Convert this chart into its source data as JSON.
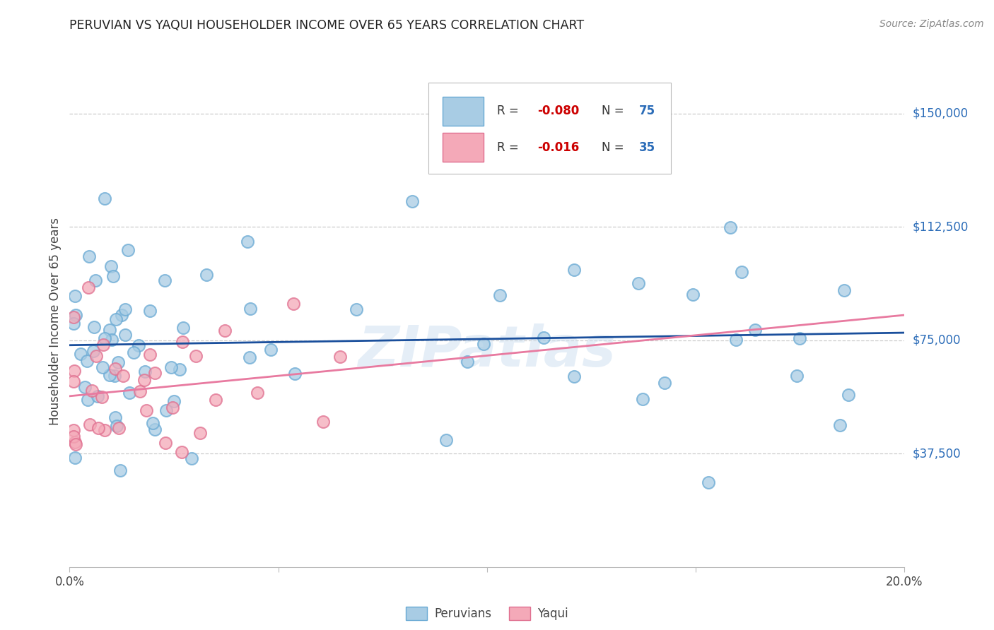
{
  "title": "PERUVIAN VS YAQUI HOUSEHOLDER INCOME OVER 65 YEARS CORRELATION CHART",
  "source": "Source: ZipAtlas.com",
  "ylabel": "Householder Income Over 65 years",
  "xlim": [
    0.0,
    0.2
  ],
  "ylim": [
    0,
    162500
  ],
  "ytick_positions": [
    37500,
    75000,
    112500,
    150000
  ],
  "ytick_labels": [
    "$37,500",
    "$75,000",
    "$112,500",
    "$150,000"
  ],
  "peruvian_color": "#a8cce4",
  "peruvian_edge": "#6aaad4",
  "yaqui_color": "#f4a9b8",
  "yaqui_edge": "#e07090",
  "line_peruvian_color": "#1a4f9c",
  "line_yaqui_color": "#e87aa0",
  "watermark": "ZIPatlas",
  "watermark_zip": "ZIP",
  "background_color": "#ffffff",
  "grid_color": "#cccccc",
  "right_label_color": "#2b6cb8",
  "title_color": "#222222",
  "source_color": "#888888",
  "legend_r_color": "#cc0000",
  "legend_n_color": "#2b6cb8"
}
